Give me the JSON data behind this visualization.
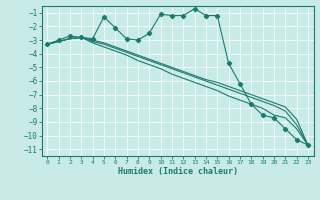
{
  "xlabel": "Humidex (Indice chaleur)",
  "xlim": [
    -0.5,
    23.5
  ],
  "ylim": [
    -11.5,
    -0.5
  ],
  "yticks": [
    -11,
    -10,
    -9,
    -8,
    -7,
    -6,
    -5,
    -4,
    -3,
    -2,
    -1
  ],
  "xticks": [
    0,
    1,
    2,
    3,
    4,
    5,
    6,
    7,
    8,
    9,
    10,
    11,
    12,
    13,
    14,
    15,
    16,
    17,
    18,
    19,
    20,
    21,
    22,
    23
  ],
  "bg_color": "#c8ebe8",
  "line_color": "#1a7a6e",
  "grid_color": "#ffffff",
  "line1_x": [
    0,
    1,
    2,
    3,
    4,
    5,
    6,
    7,
    8,
    9,
    10,
    11,
    12,
    13,
    14,
    15,
    16,
    17,
    18,
    19,
    20,
    21,
    22,
    23
  ],
  "line1_y": [
    -3.3,
    -3.0,
    -2.7,
    -2.8,
    -2.9,
    -1.3,
    -2.1,
    -2.9,
    -3.0,
    -2.5,
    -1.1,
    -1.2,
    -1.2,
    -0.7,
    -1.2,
    -1.2,
    -4.7,
    -6.2,
    -7.7,
    -8.5,
    -8.7,
    -9.5,
    -10.3,
    -10.7
  ],
  "line2_x": [
    0,
    1,
    2,
    3,
    4,
    5,
    6,
    7,
    8,
    9,
    10,
    11,
    12,
    13,
    14,
    15,
    16,
    17,
    18,
    19,
    20,
    21,
    22,
    23
  ],
  "line2_y": [
    -3.3,
    -3.1,
    -2.9,
    -2.8,
    -3.1,
    -3.3,
    -3.6,
    -3.9,
    -4.2,
    -4.5,
    -4.8,
    -5.1,
    -5.4,
    -5.7,
    -6.0,
    -6.3,
    -6.6,
    -6.9,
    -7.2,
    -7.5,
    -7.8,
    -8.2,
    -9.2,
    -10.7
  ],
  "line3_x": [
    0,
    1,
    2,
    3,
    4,
    5,
    6,
    7,
    8,
    9,
    10,
    11,
    12,
    13,
    14,
    15,
    16,
    17,
    18,
    19,
    20,
    21,
    22,
    23
  ],
  "line3_y": [
    -3.3,
    -3.1,
    -2.9,
    -2.8,
    -3.2,
    -3.5,
    -3.8,
    -4.1,
    -4.5,
    -4.8,
    -5.1,
    -5.5,
    -5.8,
    -6.1,
    -6.4,
    -6.7,
    -7.1,
    -7.4,
    -7.7,
    -8.0,
    -8.5,
    -8.7,
    -9.5,
    -10.7
  ],
  "line4_x": [
    0,
    1,
    2,
    3,
    4,
    5,
    6,
    7,
    8,
    9,
    10,
    11,
    12,
    13,
    14,
    15,
    16,
    17,
    18,
    19,
    20,
    21,
    22,
    23
  ],
  "line4_y": [
    -3.3,
    -3.1,
    -2.9,
    -2.8,
    -3.0,
    -3.2,
    -3.5,
    -3.8,
    -4.1,
    -4.4,
    -4.7,
    -5.0,
    -5.3,
    -5.6,
    -5.9,
    -6.1,
    -6.4,
    -6.7,
    -7.0,
    -7.3,
    -7.6,
    -7.9,
    -8.8,
    -10.7
  ]
}
